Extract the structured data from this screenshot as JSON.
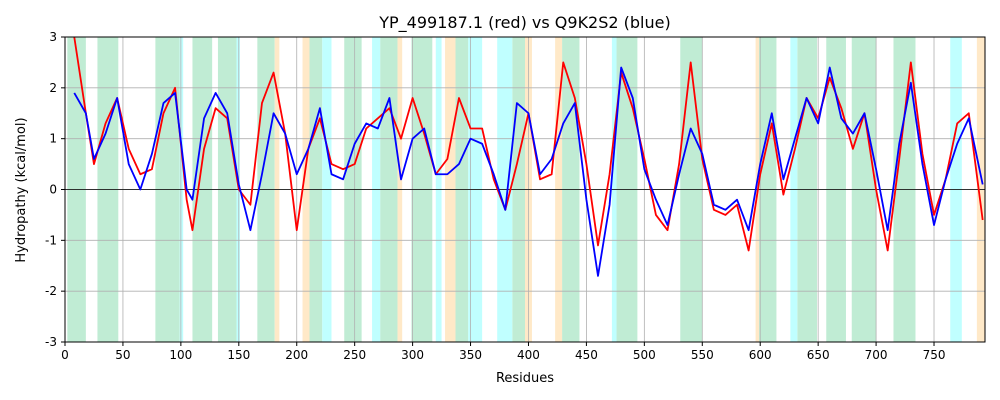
{
  "chart_data": {
    "type": "line",
    "title": "YP_499187.1 (red) vs Q9K2S2 (blue)",
    "x_label": "Residues",
    "y_label": "Hydropathy (kcal/mol)",
    "x": [
      8,
      18,
      25,
      35,
      45,
      55,
      65,
      75,
      85,
      95,
      105,
      110,
      120,
      130,
      140,
      150,
      160,
      170,
      180,
      190,
      200,
      210,
      220,
      230,
      240,
      250,
      260,
      270,
      280,
      290,
      300,
      310,
      320,
      330,
      340,
      350,
      360,
      370,
      380,
      390,
      400,
      410,
      420,
      430,
      440,
      450,
      460,
      470,
      480,
      490,
      500,
      510,
      520,
      530,
      540,
      550,
      560,
      570,
      580,
      590,
      600,
      610,
      620,
      630,
      640,
      650,
      660,
      670,
      680,
      690,
      700,
      710,
      720,
      730,
      740,
      750,
      760,
      770,
      780,
      792
    ],
    "series": [
      {
        "color": "#ff0000",
        "values": [
          3.0,
          1.5,
          0.5,
          1.3,
          1.8,
          0.8,
          0.3,
          0.4,
          1.5,
          2.0,
          -0.2,
          -0.8,
          0.8,
          1.6,
          1.4,
          0.0,
          -0.3,
          1.7,
          2.3,
          1.1,
          -0.8,
          0.8,
          1.4,
          0.5,
          0.4,
          0.5,
          1.2,
          1.4,
          1.6,
          1.0,
          1.8,
          1.1,
          0.3,
          0.6,
          1.8,
          1.2,
          1.2,
          0.2,
          -0.4,
          0.5,
          1.5,
          0.2,
          0.3,
          2.5,
          1.8,
          0.5,
          -1.1,
          0.3,
          2.3,
          1.6,
          0.6,
          -0.5,
          -0.8,
          0.5,
          2.5,
          0.6,
          -0.4,
          -0.5,
          -0.3,
          -1.2,
          0.3,
          1.3,
          -0.1,
          0.8,
          1.8,
          1.4,
          2.2,
          1.6,
          0.8,
          1.5,
          0.0,
          -1.2,
          0.6,
          2.5,
          0.7,
          -0.5,
          0.2,
          1.3,
          1.5,
          -0.6
        ]
      },
      {
        "color": "#0000ff",
        "values": [
          1.9,
          1.5,
          0.6,
          1.1,
          1.8,
          0.5,
          0.0,
          0.7,
          1.7,
          1.9,
          0.0,
          -0.2,
          1.4,
          1.9,
          1.5,
          0.1,
          -0.8,
          0.3,
          1.5,
          1.1,
          0.3,
          0.8,
          1.6,
          0.3,
          0.2,
          0.9,
          1.3,
          1.2,
          1.8,
          0.2,
          1.0,
          1.2,
          0.3,
          0.3,
          0.5,
          1.0,
          0.9,
          0.3,
          -0.4,
          1.7,
          1.5,
          0.3,
          0.6,
          1.3,
          1.7,
          -0.2,
          -1.7,
          -0.3,
          2.4,
          1.8,
          0.4,
          -0.2,
          -0.7,
          0.3,
          1.2,
          0.7,
          -0.3,
          -0.4,
          -0.2,
          -0.8,
          0.5,
          1.5,
          0.2,
          1.0,
          1.8,
          1.3,
          2.4,
          1.4,
          1.1,
          1.5,
          0.4,
          -0.8,
          0.9,
          2.1,
          0.5,
          -0.7,
          0.2,
          0.9,
          1.4,
          0.1
        ]
      }
    ],
    "regions": [
      {
        "x": [
          2,
          18
        ],
        "color": "#c0ecd4"
      },
      {
        "x": [
          28,
          46
        ],
        "color": "#c0ecd4"
      },
      {
        "x": [
          78,
          99
        ],
        "color": "#c0ecd4"
      },
      {
        "x": [
          110,
          127
        ],
        "color": "#c0ecd4"
      },
      {
        "x": [
          132,
          149
        ],
        "color": "#c0ecd4"
      },
      {
        "x": [
          166,
          181
        ],
        "color": "#c0ecd4"
      },
      {
        "x": [
          211,
          222
        ],
        "color": "#c0ecd4"
      },
      {
        "x": [
          241,
          256
        ],
        "color": "#c0ecd4"
      },
      {
        "x": [
          272,
          287
        ],
        "color": "#c0ecd4"
      },
      {
        "x": [
          299,
          317
        ],
        "color": "#c0ecd4"
      },
      {
        "x": [
          337,
          348
        ],
        "color": "#c0ecd4"
      },
      {
        "x": [
          386,
          397
        ],
        "color": "#c0ecd4"
      },
      {
        "x": [
          429,
          444
        ],
        "color": "#c0ecd4"
      },
      {
        "x": [
          476,
          494
        ],
        "color": "#c0ecd4"
      },
      {
        "x": [
          531,
          550
        ],
        "color": "#c0ecd4"
      },
      {
        "x": [
          599,
          614
        ],
        "color": "#c0ecd4"
      },
      {
        "x": [
          632,
          649
        ],
        "color": "#c0ecd4"
      },
      {
        "x": [
          657,
          674
        ],
        "color": "#c0ecd4"
      },
      {
        "x": [
          679,
          700
        ],
        "color": "#c0ecd4"
      },
      {
        "x": [
          715,
          734
        ],
        "color": "#c0ecd4"
      },
      {
        "x": [
          99,
          102
        ],
        "color": "#c0ffff"
      },
      {
        "x": [
          148,
          151
        ],
        "color": "#c0ffff"
      },
      {
        "x": [
          222,
          230
        ],
        "color": "#c0ffff"
      },
      {
        "x": [
          265,
          272
        ],
        "color": "#c0ffff"
      },
      {
        "x": [
          320,
          325
        ],
        "color": "#c0ffff"
      },
      {
        "x": [
          348,
          360
        ],
        "color": "#c0ffff"
      },
      {
        "x": [
          373,
          386
        ],
        "color": "#c0ffff"
      },
      {
        "x": [
          472,
          476
        ],
        "color": "#c0ffff"
      },
      {
        "x": [
          626,
          632
        ],
        "color": "#c0ffff"
      },
      {
        "x": [
          764,
          774
        ],
        "color": "#c0ffff"
      },
      {
        "x": [
          181,
          185
        ],
        "color": "#ffe9c8"
      },
      {
        "x": [
          205,
          211
        ],
        "color": "#ffe9c8"
      },
      {
        "x": [
          287,
          291
        ],
        "color": "#ffe9c8"
      },
      {
        "x": [
          328,
          337
        ],
        "color": "#ffe9c8"
      },
      {
        "x": [
          397,
          403
        ],
        "color": "#ffe9c8"
      },
      {
        "x": [
          423,
          429
        ],
        "color": "#ffe9c8"
      },
      {
        "x": [
          596,
          599
        ],
        "color": "#ffe9c8"
      },
      {
        "x": [
          787,
          794
        ],
        "color": "#ffe9c8"
      }
    ],
    "xlim": [
      0,
      794
    ],
    "ylim": [
      -3,
      3
    ],
    "xticks": [
      0,
      50,
      100,
      150,
      200,
      250,
      300,
      350,
      400,
      450,
      500,
      550,
      600,
      650,
      700,
      750
    ],
    "yticks": [
      -3,
      -2,
      -1,
      0,
      1,
      2,
      3
    ],
    "hlines": [
      0
    ],
    "grid": true
  }
}
